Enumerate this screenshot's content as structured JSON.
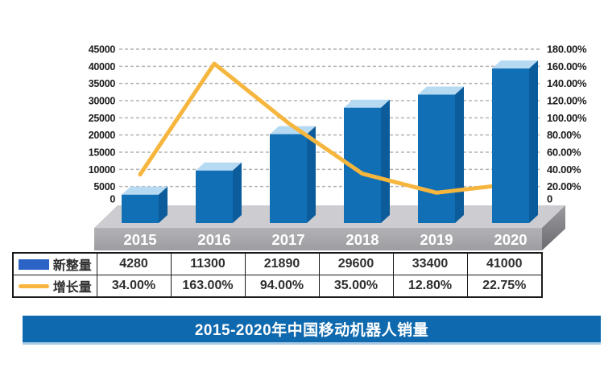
{
  "banner": {
    "title": "2015-2020年中国移动机器人销量",
    "bg_color": "#0f69ae"
  },
  "table": {
    "rows": [
      {
        "legend_label": "新整量",
        "values": [
          "4280",
          "11300",
          "21890",
          "29600",
          "33400",
          "41000"
        ]
      },
      {
        "legend_label": "增长量",
        "values": [
          "34.00%",
          "163.00%",
          "94.00%",
          "35.00%",
          "12.80%",
          "22.75%"
        ]
      }
    ]
  },
  "chart_data": {
    "type": "bar",
    "subtype": "3d-bar-with-line-overlay",
    "title": "2015-2020年中国移动机器人销量",
    "categories": [
      "2015",
      "2016",
      "2017",
      "2018",
      "2019",
      "2020"
    ],
    "series": [
      {
        "name": "新整量",
        "type": "bar",
        "axis": "left",
        "values": [
          4280,
          11300,
          21890,
          29600,
          33400,
          41000
        ]
      },
      {
        "name": "增长量",
        "type": "line",
        "axis": "right",
        "values": [
          34.0,
          163.0,
          94.0,
          35.0,
          12.8,
          22.75
        ]
      }
    ],
    "left_axis": {
      "min": 0,
      "max": 45000,
      "step": 5000,
      "tick_labels": [
        "0",
        "5000",
        "10000",
        "15000",
        "20000",
        "25000",
        "30000",
        "35000",
        "40000",
        "45000"
      ]
    },
    "right_axis": {
      "min": 0,
      "max": 180,
      "step": 20,
      "tick_labels": [
        "0",
        "20.00%",
        "40.00%",
        "60.00%",
        "80.00%",
        "100.00%",
        "120.00%",
        "140.00%",
        "160.00%",
        "180.00%"
      ]
    },
    "grid": "horizontal-dashed",
    "legend_position": "table-below-chart",
    "colors": {
      "bar_front": "#1170b5",
      "bar_side": "#0c5c9b",
      "bar_top": "#b7daf3",
      "line": "#f6b63e",
      "platform_top": "#cdcdd1",
      "grid": "#b4b4b4",
      "axis_text": "#1c1c1c",
      "year_text": "#ffffff",
      "legend_bar_swatch": "#2b63c7",
      "legend_line_swatch": "#f9b53f",
      "banner_blue": "#0f69ae"
    }
  }
}
